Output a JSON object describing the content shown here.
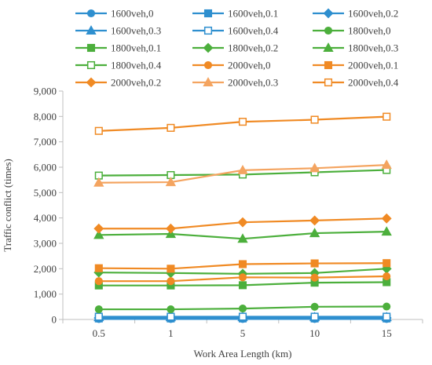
{
  "chart_data": {
    "type": "line",
    "xlabel": "Work Area Length (km)",
    "ylabel": "Traffic conflict (times)",
    "categories": [
      "0.5",
      "1",
      "5",
      "10",
      "15"
    ],
    "ylim": [
      0,
      9000
    ],
    "yticks": [
      "0",
      "1,000",
      "2,000",
      "3,000",
      "4,000",
      "5,000",
      "6,000",
      "7,000",
      "8,000",
      "9,000"
    ],
    "grid": false,
    "legend_position": "top",
    "series": [
      {
        "name": "1600veh,0",
        "color": "#2E8FCF",
        "marker": "circle",
        "filled": true,
        "values": [
          20,
          20,
          20,
          20,
          20
        ]
      },
      {
        "name": "1600veh,0.1",
        "color": "#2E8FCF",
        "marker": "square",
        "filled": true,
        "values": [
          40,
          40,
          40,
          40,
          40
        ]
      },
      {
        "name": "1600veh,0.2",
        "color": "#2E8FCF",
        "marker": "diamond",
        "filled": true,
        "values": [
          60,
          60,
          60,
          60,
          60
        ]
      },
      {
        "name": "1600veh,0.3",
        "color": "#2E8FCF",
        "marker": "triangle",
        "filled": true,
        "values": [
          90,
          90,
          90,
          90,
          90
        ]
      },
      {
        "name": "1600veh,0.4",
        "color": "#2E8FCF",
        "marker": "square",
        "filled": false,
        "values": [
          110,
          110,
          110,
          110,
          110
        ]
      },
      {
        "name": "1800veh,0",
        "color": "#4CAF3C",
        "marker": "circle",
        "filled": true,
        "values": [
          400,
          400,
          430,
          500,
          510
        ]
      },
      {
        "name": "1800veh,0.1",
        "color": "#4CAF3C",
        "marker": "square",
        "filled": true,
        "values": [
          1340,
          1340,
          1350,
          1450,
          1470
        ]
      },
      {
        "name": "1800veh,0.2",
        "color": "#4CAF3C",
        "marker": "diamond",
        "filled": true,
        "values": [
          1850,
          1830,
          1800,
          1830,
          2000
        ]
      },
      {
        "name": "1800veh,0.3",
        "color": "#4CAF3C",
        "marker": "triangle",
        "filled": true,
        "values": [
          3330,
          3370,
          3180,
          3400,
          3460
        ]
      },
      {
        "name": "1800veh,0.4",
        "color": "#4CAF3C",
        "marker": "square",
        "filled": false,
        "values": [
          5670,
          5690,
          5710,
          5800,
          5890
        ]
      },
      {
        "name": "2000veh,0",
        "color": "#F08A24",
        "marker": "circle",
        "filled": true,
        "values": [
          1510,
          1510,
          1660,
          1650,
          1700
        ]
      },
      {
        "name": "2000veh,0.1",
        "color": "#F08A24",
        "marker": "square",
        "filled": true,
        "values": [
          2020,
          2000,
          2180,
          2210,
          2220
        ]
      },
      {
        "name": "2000veh,0.2",
        "color": "#F08A24",
        "marker": "diamond",
        "filled": true,
        "values": [
          3580,
          3580,
          3830,
          3900,
          3980
        ]
      },
      {
        "name": "2000veh,0.3",
        "color": "#F4A460",
        "marker": "triangle",
        "filled": true,
        "values": [
          5390,
          5410,
          5880,
          5960,
          6090
        ]
      },
      {
        "name": "2000veh,0.4",
        "color": "#F08A24",
        "marker": "square",
        "filled": false,
        "values": [
          7430,
          7550,
          7790,
          7870,
          7990
        ]
      }
    ]
  }
}
